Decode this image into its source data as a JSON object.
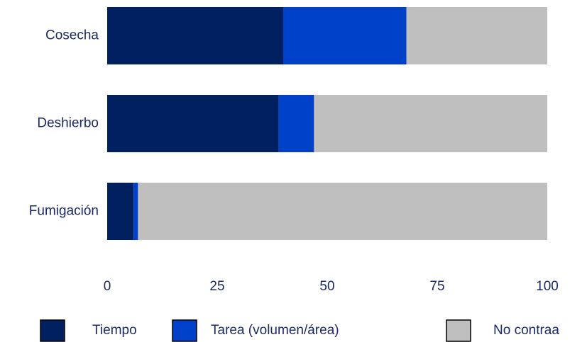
{
  "chart_data": {
    "type": "stacked_barh",
    "categories": [
      "Cosecha",
      "Deshierbo",
      "Fumigación"
    ],
    "series": [
      {
        "name": "Tiempo",
        "color": "#00205f",
        "values": [
          40,
          39,
          6
        ]
      },
      {
        "name": "Tarea (volumen/área)",
        "color": "#0041c9",
        "values": [
          28,
          8,
          1
        ]
      },
      {
        "name": "No contraa",
        "color": "#bfbfbf",
        "values": [
          32,
          53,
          93
        ]
      }
    ],
    "xlim": [
      0,
      100
    ],
    "xticks": [
      0,
      25,
      50,
      75,
      100
    ],
    "grid": false,
    "legend": "bottom"
  }
}
